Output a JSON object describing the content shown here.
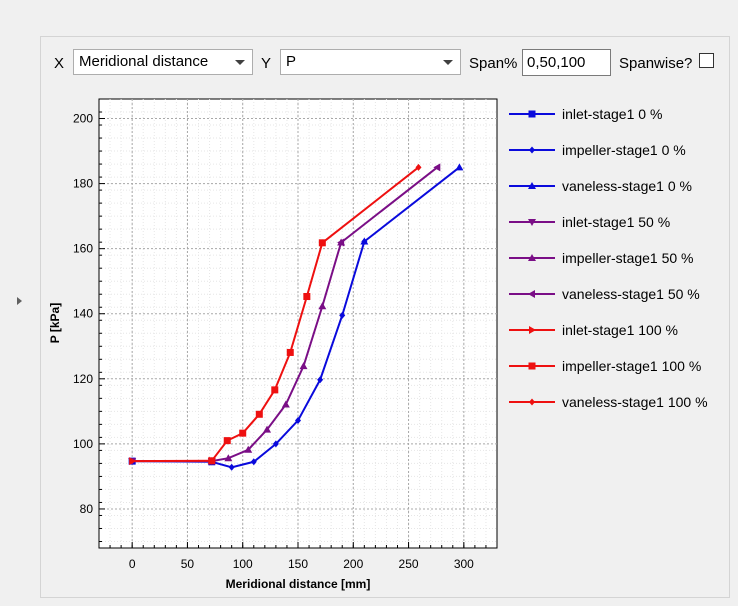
{
  "toolbar": {
    "x_label": "X",
    "x_value": "Meridional distance",
    "y_label": "Y",
    "y_value": "P",
    "span_label": "Span%",
    "span_value": "0,50,100",
    "spanwise_label": "Spanwise?",
    "spanwise_checked": false
  },
  "colors": {
    "blue": "#0a0adc",
    "purple": "#7a0e86",
    "red": "#ee1010"
  },
  "chart_data": {
    "type": "line",
    "xlabel": "Meridional distance [mm]",
    "ylabel": "P [kPa]",
    "xlim": [
      -30,
      330
    ],
    "ylim": [
      68,
      206
    ],
    "x_ticks": [
      0,
      50,
      100,
      150,
      200,
      250,
      300
    ],
    "y_ticks": [
      80,
      100,
      120,
      140,
      160,
      180,
      200
    ],
    "grid": true,
    "legend_position": "right",
    "series": [
      {
        "name": "inlet-stage1 0 %",
        "color": "blue",
        "marker": "square",
        "x": [
          0,
          72
        ],
        "y": [
          94.7,
          94.5
        ]
      },
      {
        "name": "impeller-stage1 0 %",
        "color": "blue",
        "marker": "diamond",
        "x": [
          72,
          90,
          110,
          130,
          150,
          170,
          190,
          210
        ],
        "y": [
          94.5,
          92.8,
          94.5,
          100,
          107.2,
          119.7,
          139.5,
          162.2
        ]
      },
      {
        "name": "vaneless-stage1 0 %",
        "color": "blue",
        "marker": "triangle-up",
        "x": [
          210,
          296
        ],
        "y": [
          162.2,
          185
        ]
      },
      {
        "name": "inlet-stage1 50 %",
        "color": "purple",
        "marker": "triangle-down",
        "x": [
          0,
          72
        ],
        "y": [
          94.7,
          94.7
        ]
      },
      {
        "name": "impeller-stage1 50 %",
        "color": "purple",
        "marker": "triangle-up",
        "x": [
          72,
          87,
          105,
          122,
          139,
          155,
          172,
          189
        ],
        "y": [
          94.7,
          95.6,
          98.2,
          104.4,
          112.1,
          123.9,
          142.3,
          161.9
        ]
      },
      {
        "name": "vaneless-stage1 50 %",
        "color": "purple",
        "marker": "triangle-left",
        "x": [
          189,
          276
        ],
        "y": [
          161.9,
          185
        ]
      },
      {
        "name": "inlet-stage1 100 %",
        "color": "red",
        "marker": "triangle-right",
        "x": [
          0,
          72
        ],
        "y": [
          94.7,
          94.8
        ]
      },
      {
        "name": "impeller-stage1 100 %",
        "color": "red",
        "marker": "square",
        "x": [
          72,
          86,
          100,
          115,
          129,
          143,
          158,
          172
        ],
        "y": [
          94.8,
          101,
          103.3,
          109.1,
          116.6,
          128.1,
          145.3,
          161.8
        ]
      },
      {
        "name": "vaneless-stage1 100 %",
        "color": "red",
        "marker": "diamond",
        "x": [
          172,
          259
        ],
        "y": [
          161.8,
          185
        ]
      }
    ]
  }
}
